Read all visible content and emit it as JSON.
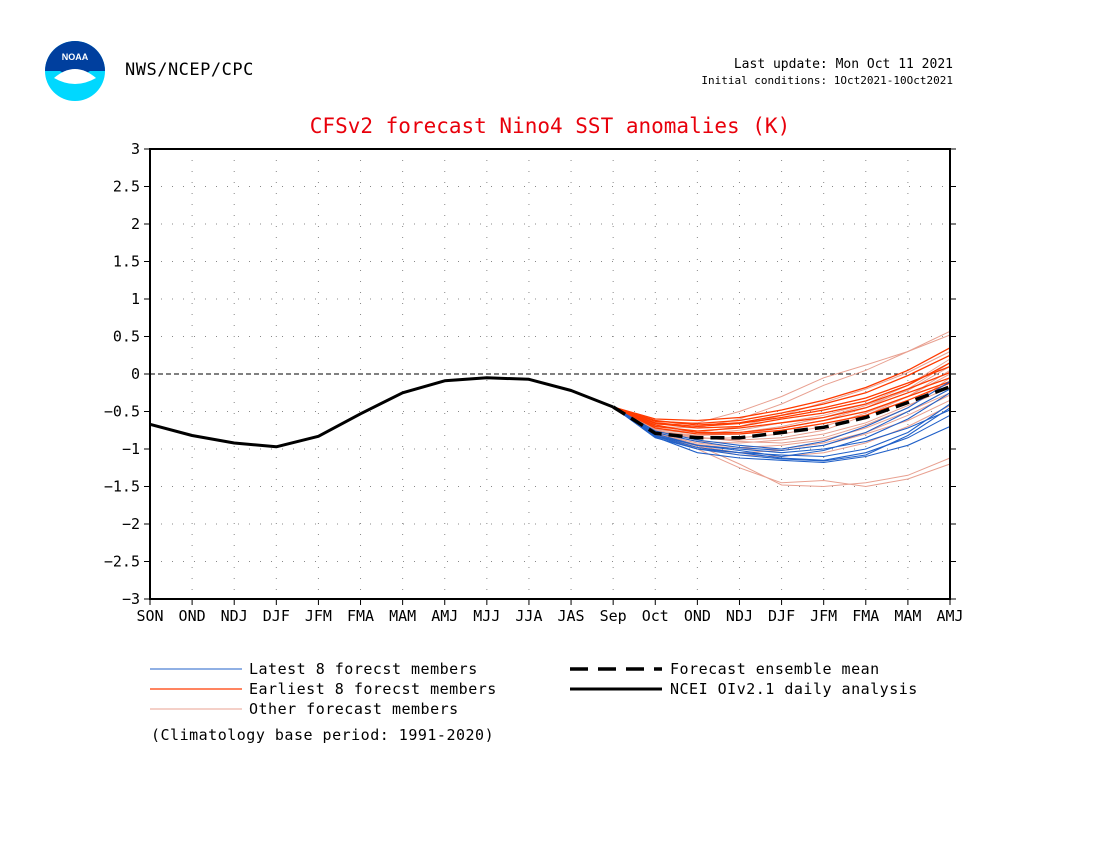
{
  "header": {
    "agency": "NWS/NCEP/CPC",
    "last_update": "Last update: Mon Oct 11 2021",
    "initial_conditions": "Initial conditions: 1Oct2021-10Oct2021"
  },
  "logo": {
    "name": "noaa-logo",
    "text": "NOAA"
  },
  "legend": {
    "latest": "Latest 8 forecst members",
    "earliest": "Earliest 8 forecst members",
    "other": "Other forecast members",
    "mean": "Forecast ensemble mean",
    "analysis": "NCEI OIv2.1 daily analysis"
  },
  "note": "(Climatology base period: 1991-2020)",
  "colors": {
    "latest": "#2060c8",
    "earliest": "#ff3b00",
    "other": "#e8a090",
    "title": "#e8000b",
    "analysis": "#000000",
    "mean": "#000000"
  },
  "chart_data": {
    "type": "line",
    "title": "CFSv2 forecast Nino4 SST anomalies (K)",
    "xlabel": "",
    "ylabel": "",
    "categories": [
      "SON",
      "OND",
      "NDJ",
      "DJF",
      "JFM",
      "FMA",
      "MAM",
      "AMJ",
      "MJJ",
      "JJA",
      "JAS",
      "Sep",
      "Oct",
      "OND",
      "NDJ",
      "DJF",
      "JFM",
      "FMA",
      "MAM",
      "AMJ"
    ],
    "ylim": [
      -3,
      3
    ],
    "yticks": [
      -3,
      -2.5,
      -2,
      -1.5,
      -1,
      -0.5,
      0,
      0.5,
      1,
      1.5,
      2,
      2.5,
      3
    ],
    "grid": true,
    "zero_line": true,
    "series": [
      {
        "name": "NCEI OIv2.1 daily analysis",
        "style": "solid-black-thick",
        "x": [
          0,
          1,
          2,
          3,
          4,
          5,
          6,
          7,
          8,
          9,
          10,
          11
        ],
        "values": [
          -0.67,
          -0.82,
          -0.92,
          -0.97,
          -0.83,
          -0.53,
          -0.25,
          -0.09,
          -0.05,
          -0.07,
          -0.22,
          -0.44
        ]
      },
      {
        "name": "Forecast ensemble mean",
        "style": "dashed-black-thick",
        "x": [
          11,
          12,
          13,
          14,
          15,
          16,
          17,
          18,
          19
        ],
        "values": [
          -0.44,
          -0.79,
          -0.85,
          -0.85,
          -0.78,
          -0.71,
          -0.58,
          -0.38,
          -0.17
        ]
      }
    ],
    "member_groups": [
      {
        "group": "latest",
        "x": [
          11,
          12,
          13,
          14,
          15,
          16,
          17,
          18,
          19
        ],
        "members": [
          [
            -0.44,
            -0.82,
            -0.98,
            -1.05,
            -1.12,
            -1.15,
            -1.05,
            -0.85,
            -0.55
          ],
          [
            -0.44,
            -0.85,
            -1.0,
            -1.08,
            -1.13,
            -1.16,
            -1.08,
            -0.82,
            -0.45
          ],
          [
            -0.44,
            -0.8,
            -0.95,
            -1.02,
            -1.1,
            -1.02,
            -0.85,
            -0.6,
            -0.25
          ],
          [
            -0.44,
            -0.84,
            -1.05,
            -1.12,
            -1.15,
            -1.18,
            -1.1,
            -0.95,
            -0.7
          ],
          [
            -0.44,
            -0.78,
            -0.9,
            -0.98,
            -1.02,
            -0.95,
            -0.78,
            -0.5,
            -0.2
          ],
          [
            -0.44,
            -0.82,
            -0.95,
            -1.0,
            -1.05,
            -1.0,
            -0.9,
            -0.72,
            -0.48
          ],
          [
            -0.44,
            -0.83,
            -1.0,
            -1.05,
            -1.08,
            -1.1,
            -1.0,
            -0.78,
            -0.4
          ],
          [
            -0.44,
            -0.76,
            -0.88,
            -0.95,
            -1.0,
            -0.9,
            -0.7,
            -0.45,
            -0.1
          ]
        ]
      },
      {
        "group": "earliest",
        "x": [
          11,
          12,
          13,
          14,
          15,
          16,
          17,
          18,
          19
        ],
        "members": [
          [
            -0.44,
            -0.62,
            -0.68,
            -0.65,
            -0.55,
            -0.45,
            -0.32,
            -0.12,
            0.1
          ],
          [
            -0.44,
            -0.66,
            -0.72,
            -0.7,
            -0.6,
            -0.52,
            -0.4,
            -0.2,
            0.02
          ],
          [
            -0.44,
            -0.7,
            -0.76,
            -0.72,
            -0.65,
            -0.58,
            -0.45,
            -0.25,
            -0.05
          ],
          [
            -0.44,
            -0.6,
            -0.62,
            -0.58,
            -0.48,
            -0.35,
            -0.18,
            0.05,
            0.35
          ],
          [
            -0.44,
            -0.68,
            -0.78,
            -0.78,
            -0.72,
            -0.62,
            -0.5,
            -0.3,
            -0.1
          ],
          [
            -0.44,
            -0.65,
            -0.7,
            -0.66,
            -0.58,
            -0.48,
            -0.36,
            -0.15,
            0.15
          ],
          [
            -0.44,
            -0.72,
            -0.8,
            -0.8,
            -0.75,
            -0.66,
            -0.55,
            -0.35,
            -0.12
          ],
          [
            -0.44,
            -0.63,
            -0.66,
            -0.62,
            -0.52,
            -0.4,
            -0.25,
            -0.02,
            0.25
          ]
        ]
      },
      {
        "group": "other",
        "x": [
          11,
          12,
          13,
          14,
          15,
          16,
          17,
          18,
          19
        ],
        "members": [
          [
            -0.44,
            -0.78,
            -0.95,
            -1.2,
            -1.48,
            -1.5,
            -1.45,
            -1.35,
            -1.12
          ],
          [
            -0.44,
            -0.8,
            -1.0,
            -1.25,
            -1.45,
            -1.42,
            -1.5,
            -1.4,
            -1.2
          ],
          [
            -0.44,
            -0.7,
            -0.72,
            -0.6,
            -0.4,
            -0.15,
            0.05,
            0.3,
            0.52
          ],
          [
            -0.44,
            -0.68,
            -0.65,
            -0.5,
            -0.3,
            -0.05,
            0.12,
            0.3,
            0.57
          ],
          [
            -0.44,
            -0.75,
            -0.85,
            -0.88,
            -0.85,
            -0.75,
            -0.55,
            -0.3,
            0.05
          ],
          [
            -0.44,
            -0.76,
            -0.82,
            -0.8,
            -0.72,
            -0.62,
            -0.45,
            -0.2,
            0.15
          ],
          [
            -0.44,
            -0.8,
            -0.92,
            -0.98,
            -0.95,
            -0.88,
            -0.72,
            -0.5,
            -0.25
          ],
          [
            -0.44,
            -0.74,
            -0.8,
            -0.75,
            -0.65,
            -0.55,
            -0.4,
            -0.15,
            0.2
          ],
          [
            -0.44,
            -0.82,
            -0.96,
            -1.05,
            -1.02,
            -0.95,
            -0.8,
            -0.62,
            -0.35
          ],
          [
            -0.44,
            -0.72,
            -0.78,
            -0.7,
            -0.55,
            -0.38,
            -0.2,
            0.02,
            0.3
          ],
          [
            -0.44,
            -0.79,
            -0.9,
            -0.92,
            -0.88,
            -0.8,
            -0.65,
            -0.42,
            -0.18
          ],
          [
            -0.44,
            -0.77,
            -0.86,
            -0.85,
            -0.8,
            -0.7,
            -0.52,
            -0.3,
            0.0
          ],
          [
            -0.44,
            -0.81,
            -0.94,
            -1.0,
            -1.0,
            -0.92,
            -0.78,
            -0.55,
            -0.28
          ],
          [
            -0.44,
            -0.73,
            -0.8,
            -0.78,
            -0.7,
            -0.58,
            -0.42,
            -0.22,
            0.1
          ],
          [
            -0.44,
            -0.75,
            -0.84,
            -0.9,
            -0.92,
            -0.85,
            -0.68,
            -0.45,
            -0.05
          ],
          [
            -0.44,
            -0.83,
            -0.98,
            -1.08,
            -1.1,
            -1.05,
            -0.92,
            -0.7,
            -0.42
          ]
        ]
      }
    ]
  }
}
